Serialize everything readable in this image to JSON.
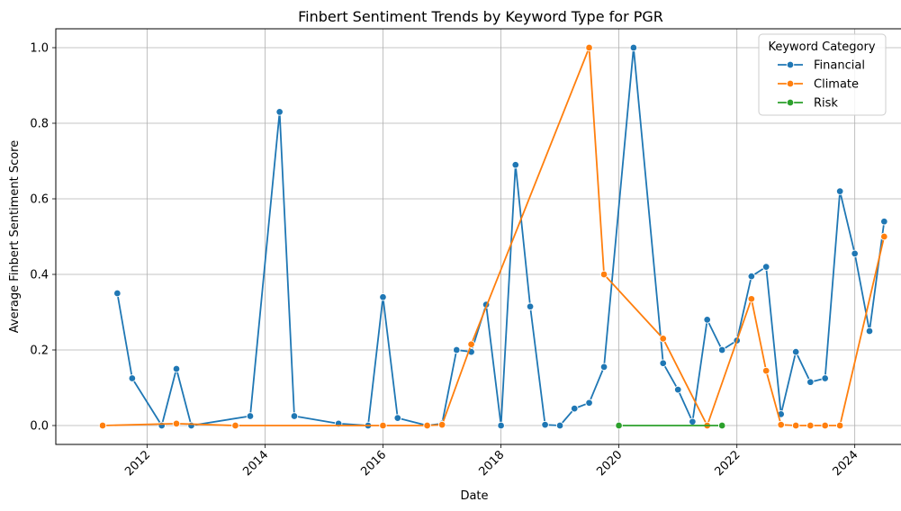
{
  "chart_data": {
    "type": "line",
    "title": "Finbert Sentiment Trends by Keyword Type for PGR",
    "xlabel": "Date",
    "ylabel": "Average Finbert Sentiment Score",
    "xlim": [
      "2010-06-15",
      "2024-11-10"
    ],
    "ylim": [
      -0.05,
      1.05
    ],
    "x_ticks": [
      {
        "label": "2012",
        "value": "2012-01-01"
      },
      {
        "label": "2014",
        "value": "2014-01-01"
      },
      {
        "label": "2016",
        "value": "2016-01-01"
      },
      {
        "label": "2018",
        "value": "2018-01-01"
      },
      {
        "label": "2020",
        "value": "2020-01-01"
      },
      {
        "label": "2022",
        "value": "2022-01-01"
      },
      {
        "label": "2024",
        "value": "2024-01-01"
      }
    ],
    "y_ticks": [
      {
        "label": "0.0",
        "value": 0.0
      },
      {
        "label": "0.2",
        "value": 0.2
      },
      {
        "label": "0.4",
        "value": 0.4
      },
      {
        "label": "0.6",
        "value": 0.6
      },
      {
        "label": "0.8",
        "value": 0.8
      },
      {
        "label": "1.0",
        "value": 1.0
      }
    ],
    "grid": true,
    "legend": {
      "title": "Keyword Category",
      "placement": "top-right"
    },
    "series": [
      {
        "name": "Financial",
        "color": "#1f77b4",
        "points": [
          [
            "2011-07-01",
            0.35
          ],
          [
            "2011-10-01",
            0.125
          ],
          [
            "2012-04-01",
            0.0
          ],
          [
            "2012-07-01",
            0.15
          ],
          [
            "2012-10-01",
            0.0
          ],
          [
            "2013-10-01",
            0.025
          ],
          [
            "2014-04-01",
            0.83
          ],
          [
            "2014-07-01",
            0.025
          ],
          [
            "2015-04-01",
            0.005
          ],
          [
            "2015-10-01",
            0.0
          ],
          [
            "2016-01-01",
            0.34
          ],
          [
            "2016-04-01",
            0.02
          ],
          [
            "2016-10-01",
            0.0
          ],
          [
            "2017-01-01",
            0.005
          ],
          [
            "2017-04-01",
            0.2
          ],
          [
            "2017-07-01",
            0.195
          ],
          [
            "2017-10-01",
            0.32
          ],
          [
            "2018-01-01",
            0.0
          ],
          [
            "2018-04-01",
            0.69
          ],
          [
            "2018-07-01",
            0.315
          ],
          [
            "2018-10-01",
            0.002
          ],
          [
            "2019-01-01",
            0.0
          ],
          [
            "2019-04-01",
            0.045
          ],
          [
            "2019-07-01",
            0.06
          ],
          [
            "2019-10-01",
            0.155
          ],
          [
            "2020-04-01",
            1.0
          ],
          [
            "2020-10-01",
            0.165
          ],
          [
            "2021-01-01",
            0.095
          ],
          [
            "2021-04-01",
            0.01
          ],
          [
            "2021-07-01",
            0.28
          ],
          [
            "2021-10-01",
            0.2
          ],
          [
            "2022-01-01",
            0.225
          ],
          [
            "2022-04-01",
            0.395
          ],
          [
            "2022-07-01",
            0.42
          ],
          [
            "2022-10-01",
            0.03
          ],
          [
            "2023-01-01",
            0.195
          ],
          [
            "2023-04-01",
            0.115
          ],
          [
            "2023-07-01",
            0.125
          ],
          [
            "2023-10-01",
            0.62
          ],
          [
            "2024-01-01",
            0.455
          ],
          [
            "2024-04-01",
            0.25
          ],
          [
            "2024-07-01",
            0.54
          ]
        ]
      },
      {
        "name": "Climate",
        "color": "#ff7f0e",
        "points": [
          [
            "2011-04-01",
            0.0
          ],
          [
            "2012-07-01",
            0.005
          ],
          [
            "2013-07-01",
            0.0
          ],
          [
            "2016-01-01",
            0.0
          ],
          [
            "2016-10-01",
            0.0
          ],
          [
            "2017-01-01",
            0.002
          ],
          [
            "2017-07-01",
            0.215
          ],
          [
            "2019-07-01",
            1.0
          ],
          [
            "2019-10-01",
            0.4
          ],
          [
            "2020-10-01",
            0.23
          ],
          [
            "2021-07-01",
            0.0
          ],
          [
            "2022-04-01",
            0.335
          ],
          [
            "2022-07-01",
            0.145
          ],
          [
            "2022-10-01",
            0.002
          ],
          [
            "2023-01-01",
            0.0
          ],
          [
            "2023-04-01",
            0.0
          ],
          [
            "2023-07-01",
            0.0
          ],
          [
            "2023-10-01",
            0.0
          ],
          [
            "2024-07-01",
            0.5
          ]
        ]
      },
      {
        "name": "Risk",
        "color": "#2ca02c",
        "points": [
          [
            "2020-01-01",
            0.0
          ],
          [
            "2021-10-01",
            0.0
          ]
        ]
      }
    ]
  }
}
